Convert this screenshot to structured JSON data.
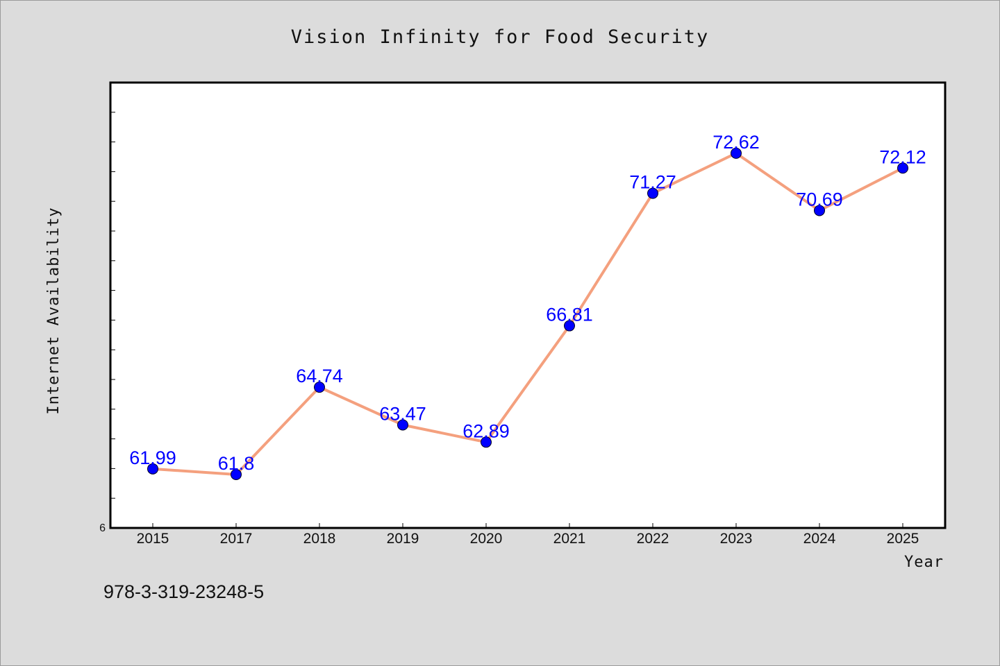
{
  "chart_data": {
    "type": "line",
    "title": "Vision Infinity for Food Security",
    "xlabel": "Year",
    "ylabel": "Internet Availability",
    "categories": [
      "2015",
      "2017",
      "2018",
      "2019",
      "2020",
      "2021",
      "2022",
      "2023",
      "2024",
      "2025"
    ],
    "series": [
      {
        "values": [
          61.99,
          61.8,
          64.74,
          63.47,
          62.89,
          66.81,
          71.27,
          72.62,
          70.69,
          72.12
        ]
      }
    ],
    "data_labels": [
      "61.99",
      "61.8",
      "64.74",
      "63.47",
      "62.89",
      "66.81",
      "71.27",
      "72.62",
      "70.69",
      "72.12"
    ],
    "y_tick_labels": [
      "6"
    ],
    "ylim": [
      60.0,
      75.0
    ],
    "y_minor_tick_step": 1.0,
    "grid": false,
    "legend": "none",
    "colors": {
      "line": "#f4a07e",
      "marker": "#0000ff",
      "label": "#0000ff",
      "background": "#dcdcdc",
      "plot_background": "#ffffff"
    }
  },
  "footer": {
    "code": "978-3-319-23248-5"
  }
}
